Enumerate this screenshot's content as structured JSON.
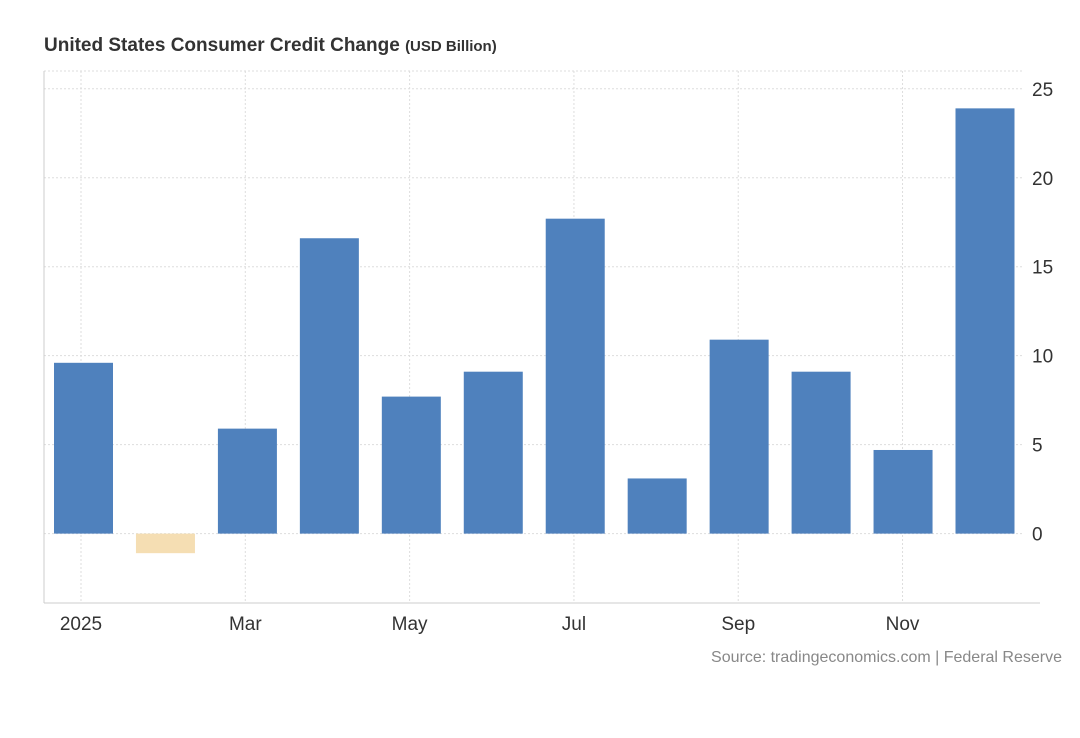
{
  "chart_data": {
    "type": "bar",
    "title": "United States Consumer Credit Change",
    "unit": "(USD Billion)",
    "categories": [
      "Jan 2025",
      "Feb 2025",
      "Mar 2025",
      "Apr 2025",
      "May 2025",
      "Jun 2025",
      "Jul 2025",
      "Aug 2025",
      "Sep 2025",
      "Oct 2025",
      "Nov 2025",
      "Dec 2025"
    ],
    "values": [
      9.6,
      -1.1,
      5.9,
      16.6,
      7.7,
      9.1,
      17.7,
      3.1,
      10.9,
      9.1,
      4.7,
      23.9
    ],
    "x_tick_labels": [
      {
        "index": 0,
        "label": "2025"
      },
      {
        "index": 2,
        "label": "Mar"
      },
      {
        "index": 4,
        "label": "May"
      },
      {
        "index": 6,
        "label": "Jul"
      },
      {
        "index": 8,
        "label": "Sep"
      },
      {
        "index": 10,
        "label": "Nov"
      }
    ],
    "y_ticks": [
      0,
      5,
      10,
      15,
      20,
      25
    ],
    "ylim": [
      -3.9,
      26
    ],
    "xlabel": "",
    "ylabel": "",
    "grid": true,
    "legend": "none",
    "colors": {
      "positive": "#4f81bd",
      "negative": "#f5deb3"
    }
  },
  "source": "Source: tradingeconomics.com | Federal Reserve"
}
